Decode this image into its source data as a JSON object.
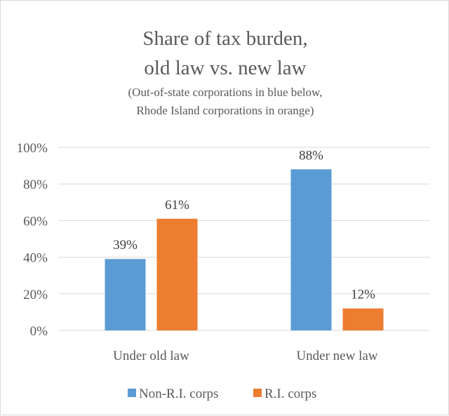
{
  "chart_data": {
    "type": "bar",
    "title_lines": [
      "Share of tax burden,",
      "old law vs. new law"
    ],
    "subtitle_lines": [
      "(Out-of-state corporations in blue below,",
      "Rhode Island corporations in orange)"
    ],
    "categories": [
      "Under old law",
      "Under new law"
    ],
    "series": [
      {
        "name": "Non-R.I. corps",
        "color": "#5b9bd5",
        "values": [
          39,
          88
        ],
        "labels": [
          "39%",
          "88%"
        ]
      },
      {
        "name": "R.I. corps",
        "color": "#ed7d31",
        "values": [
          61,
          12
        ],
        "labels": [
          "61%",
          "12%"
        ]
      }
    ],
    "ylim": [
      0,
      100
    ],
    "yticks": [
      0,
      20,
      40,
      60,
      80,
      100
    ],
    "ytick_labels": [
      "0%",
      "20%",
      "40%",
      "60%",
      "80%",
      "100%"
    ],
    "grid": true,
    "legend_position": "bottom",
    "gridline_color": "#d9d9d9"
  }
}
